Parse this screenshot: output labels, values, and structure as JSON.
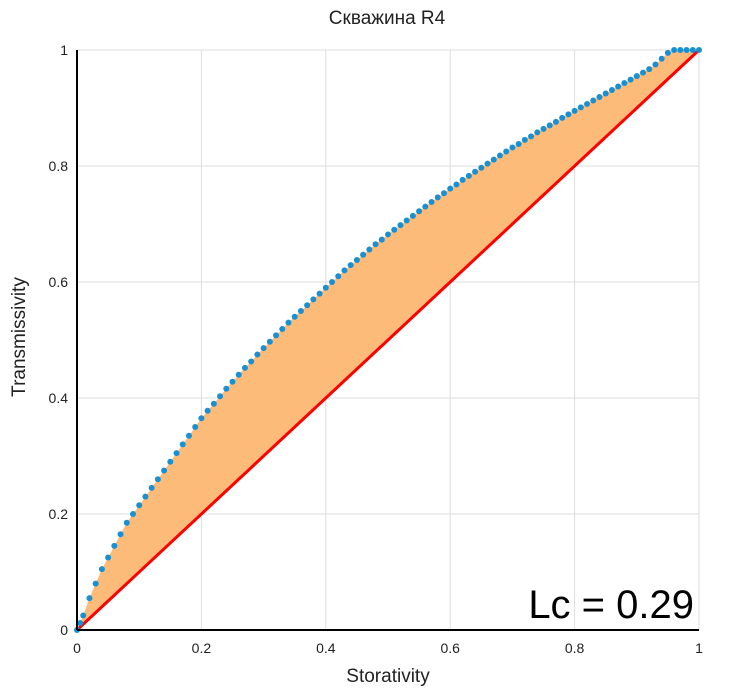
{
  "chart_data": {
    "type": "scatter",
    "title": "Скважина R4",
    "xlabel": "Storativity",
    "ylabel": "Transmissivity",
    "xlim": [
      0,
      1
    ],
    "ylim": [
      0,
      1
    ],
    "x_ticks": [
      0,
      0.2,
      0.4,
      0.6,
      0.8,
      1
    ],
    "y_ticks": [
      0,
      0.2,
      0.4,
      0.6,
      0.8,
      1
    ],
    "x_tick_labels": [
      "0",
      "0.2",
      "0.4",
      "0.6",
      "0.8",
      "1"
    ],
    "y_tick_labels": [
      "0",
      "0.2",
      "0.4",
      "0.6",
      "0.8",
      "1"
    ],
    "grid": true,
    "annotation": "Lc = 0.29",
    "colors": {
      "points": "#1a90d0",
      "fill": "#fdbb79",
      "equality_line": "#ff0000",
      "grid": "#dddddd",
      "axis": "#000000"
    },
    "equality_line": {
      "x": [
        0,
        1
      ],
      "y": [
        0,
        1
      ]
    },
    "series": [
      {
        "points": [
          [
            0.0,
            0.0
          ],
          [
            0.005,
            0.012
          ],
          [
            0.01,
            0.025
          ],
          [
            0.02,
            0.055
          ],
          [
            0.03,
            0.08
          ],
          [
            0.04,
            0.105
          ],
          [
            0.05,
            0.125
          ],
          [
            0.06,
            0.145
          ],
          [
            0.07,
            0.165
          ],
          [
            0.08,
            0.185
          ],
          [
            0.09,
            0.2
          ],
          [
            0.1,
            0.215
          ],
          [
            0.11,
            0.23
          ],
          [
            0.12,
            0.245
          ],
          [
            0.13,
            0.26
          ],
          [
            0.14,
            0.275
          ],
          [
            0.15,
            0.29
          ],
          [
            0.16,
            0.305
          ],
          [
            0.17,
            0.32
          ],
          [
            0.18,
            0.335
          ],
          [
            0.19,
            0.35
          ],
          [
            0.2,
            0.365
          ],
          [
            0.21,
            0.378
          ],
          [
            0.22,
            0.39
          ],
          [
            0.23,
            0.403
          ],
          [
            0.24,
            0.416
          ],
          [
            0.25,
            0.428
          ],
          [
            0.26,
            0.44
          ],
          [
            0.27,
            0.452
          ],
          [
            0.28,
            0.463
          ],
          [
            0.29,
            0.475
          ],
          [
            0.3,
            0.486
          ],
          [
            0.31,
            0.497
          ],
          [
            0.32,
            0.508
          ],
          [
            0.33,
            0.519
          ],
          [
            0.34,
            0.53
          ],
          [
            0.35,
            0.54
          ],
          [
            0.36,
            0.55
          ],
          [
            0.37,
            0.56
          ],
          [
            0.38,
            0.57
          ],
          [
            0.39,
            0.58
          ],
          [
            0.4,
            0.59
          ],
          [
            0.41,
            0.6
          ],
          [
            0.42,
            0.61
          ],
          [
            0.43,
            0.62
          ],
          [
            0.44,
            0.629
          ],
          [
            0.45,
            0.638
          ],
          [
            0.46,
            0.647
          ],
          [
            0.47,
            0.656
          ],
          [
            0.48,
            0.665
          ],
          [
            0.49,
            0.673
          ],
          [
            0.5,
            0.682
          ],
          [
            0.51,
            0.69
          ],
          [
            0.52,
            0.698
          ],
          [
            0.53,
            0.706
          ],
          [
            0.54,
            0.714
          ],
          [
            0.55,
            0.722
          ],
          [
            0.56,
            0.73
          ],
          [
            0.57,
            0.738
          ],
          [
            0.58,
            0.746
          ],
          [
            0.59,
            0.753
          ],
          [
            0.6,
            0.761
          ],
          [
            0.61,
            0.768
          ],
          [
            0.62,
            0.776
          ],
          [
            0.63,
            0.783
          ],
          [
            0.64,
            0.79
          ],
          [
            0.65,
            0.797
          ],
          [
            0.66,
            0.804
          ],
          [
            0.67,
            0.811
          ],
          [
            0.68,
            0.818
          ],
          [
            0.69,
            0.825
          ],
          [
            0.7,
            0.832
          ],
          [
            0.71,
            0.838
          ],
          [
            0.72,
            0.845
          ],
          [
            0.73,
            0.851
          ],
          [
            0.74,
            0.858
          ],
          [
            0.75,
            0.864
          ],
          [
            0.76,
            0.87
          ],
          [
            0.77,
            0.876
          ],
          [
            0.78,
            0.883
          ],
          [
            0.79,
            0.889
          ],
          [
            0.8,
            0.895
          ],
          [
            0.81,
            0.901
          ],
          [
            0.82,
            0.907
          ],
          [
            0.83,
            0.913
          ],
          [
            0.84,
            0.919
          ],
          [
            0.85,
            0.925
          ],
          [
            0.86,
            0.931
          ],
          [
            0.87,
            0.937
          ],
          [
            0.88,
            0.943
          ],
          [
            0.89,
            0.949
          ],
          [
            0.9,
            0.955
          ],
          [
            0.91,
            0.961
          ],
          [
            0.92,
            0.967
          ],
          [
            0.93,
            0.975
          ],
          [
            0.94,
            0.985
          ],
          [
            0.95,
            0.995
          ],
          [
            0.96,
            1.0
          ],
          [
            0.97,
            1.0
          ],
          [
            0.98,
            1.0
          ],
          [
            0.99,
            1.0
          ],
          [
            1.0,
            1.0
          ]
        ]
      }
    ]
  }
}
